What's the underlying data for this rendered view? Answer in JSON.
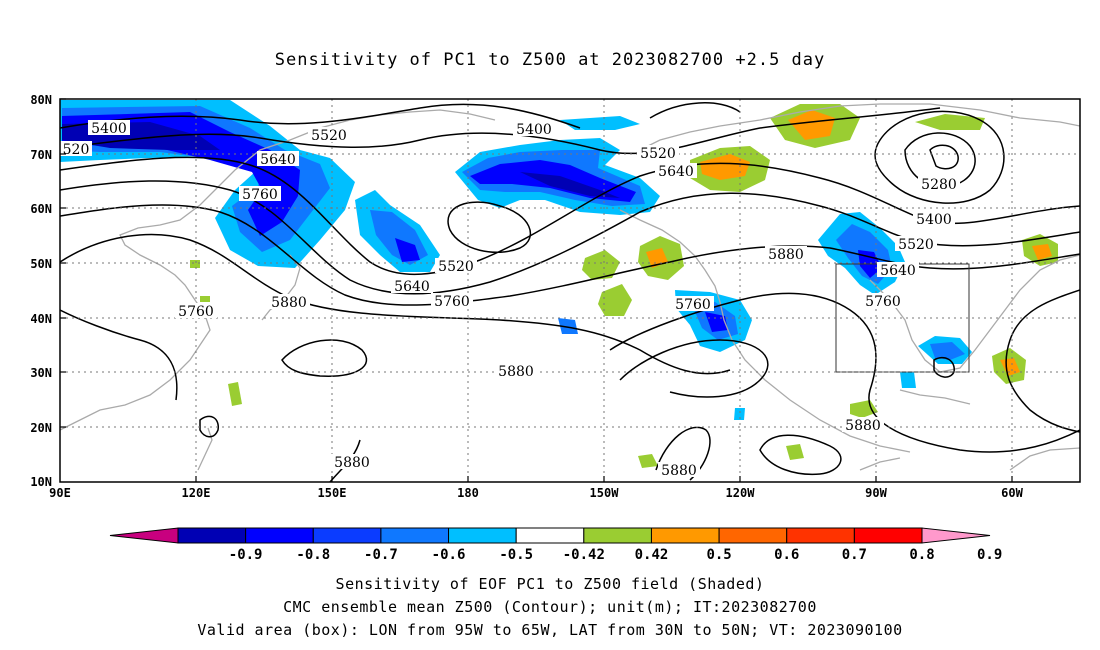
{
  "title": "Sensitivity of PC1 to Z500 at 2023082700 +2.5 day",
  "axes": {
    "lat_labels": [
      "80N",
      "70N",
      "60N",
      "50N",
      "40N",
      "30N",
      "20N",
      "10N"
    ],
    "lon_labels": [
      "90E",
      "120E",
      "150E",
      "180",
      "150W",
      "120W",
      "90W",
      "60W"
    ]
  },
  "contour_labels": [
    "5400",
    "520",
    "5520",
    "5640",
    "5760",
    "5880",
    "5400",
    "5520",
    "5640",
    "5760",
    "5520",
    "5640",
    "5760",
    "5880",
    "5280",
    "5400",
    "5520",
    "5640",
    "5760",
    "5880",
    "5760",
    "5880",
    "5880",
    "5880"
  ],
  "colorbar": {
    "ticks": [
      "-0.9",
      "-0.8",
      "-0.7",
      "-0.6",
      "-0.5",
      "-0.42",
      "0.42",
      "0.5",
      "0.6",
      "0.7",
      "0.8",
      "0.9"
    ],
    "colors": [
      "#c8007f",
      "#0000b4",
      "#0000ff",
      "#0b3cff",
      "#0f78ff",
      "#00bfff",
      "#ffffff",
      "#9acd32",
      "#ff9900",
      "#ff6600",
      "#ff3300",
      "#ff0000",
      "#ff99cc"
    ]
  },
  "caption": {
    "line1": "Sensitivity of EOF PC1 to Z500 field (Shaded)",
    "line2": "CMC ensemble mean Z500 (Contour); unit(m); IT:2023082700",
    "line3": "Valid area (box): LON from 95W to 65W, LAT from 30N to 50N; VT: 2023090100"
  }
}
